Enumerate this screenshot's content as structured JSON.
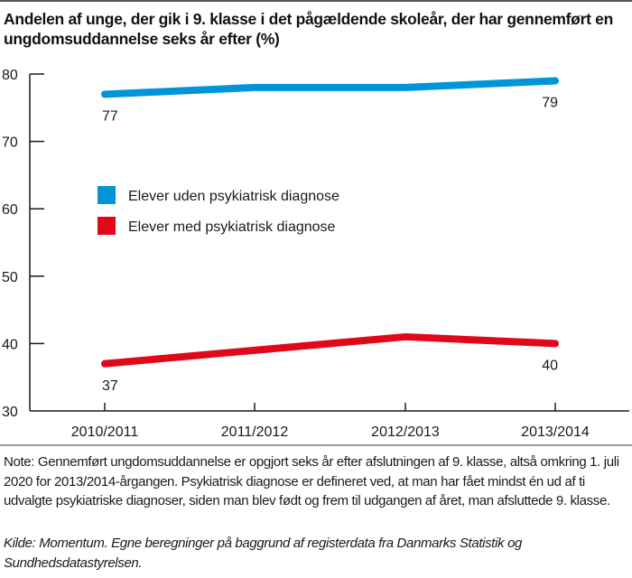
{
  "chart_data": {
    "type": "line",
    "title": "Andelen af unge, der gik i 9. klasse i det pågældende skoleår, der har gennemført en ungdomsuddannelse seks år efter (%)",
    "xlabel": "",
    "ylabel": "",
    "categories": [
      "2010/2011",
      "2011/2012",
      "2012/2013",
      "2013/2014"
    ],
    "ylim": [
      30,
      80
    ],
    "yticks": [
      30,
      40,
      50,
      60,
      70,
      80
    ],
    "grid": false,
    "legend_position": "center-left",
    "series": [
      {
        "name": "Elever uden psykiatrisk diagnose",
        "color": "#0095d8",
        "values": [
          77,
          78,
          78,
          79
        ],
        "data_labels": [
          {
            "index": 0,
            "text": "77"
          },
          {
            "index": 3,
            "text": "79"
          }
        ]
      },
      {
        "name": "Elever med psykiatrisk diagnose",
        "color": "#e0081a",
        "values": [
          37,
          39,
          41,
          40
        ],
        "data_labels": [
          {
            "index": 0,
            "text": "37"
          },
          {
            "index": 3,
            "text": "40"
          }
        ]
      }
    ]
  },
  "note": "Note: Gennemført ungdomsuddannelse er opgjort seks år efter afslutningen af 9. klasse, altså omkring 1. juli 2020 for 2013/2014-årgangen. Psykiatrisk diagnose er defineret ved, at man har fået mindst én ud af ti udvalgte psykiatriske diagnoser, siden man blev født og frem til udgangen af året, man afsluttede 9. klasse.",
  "source": "Kilde: Momentum. Egne beregninger på baggrund af registerdata fra Danmarks Statistik og Sundhedsdatastyrelsen."
}
